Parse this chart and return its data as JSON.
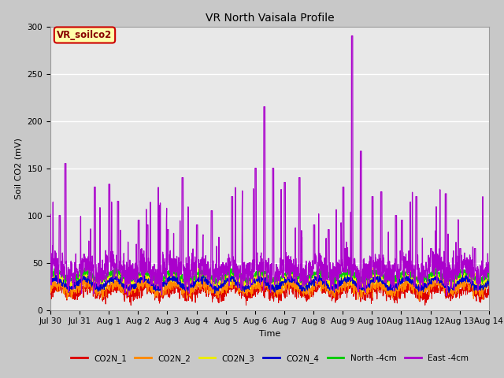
{
  "title": "VR North Vaisala Profile",
  "xlabel": "Time",
  "ylabel": "Soil CO2 (mV)",
  "ylim": [
    0,
    300
  ],
  "yticks": [
    0,
    50,
    100,
    150,
    200,
    250,
    300
  ],
  "date_labels": [
    "Jul 30",
    "Jul 31",
    "Aug 1",
    "Aug 2",
    "Aug 3",
    "Aug 4",
    "Aug 5",
    "Aug 6",
    "Aug 7",
    "Aug 8",
    "Aug 9",
    "Aug 10",
    "Aug 11",
    "Aug 12",
    "Aug 13",
    "Aug 14"
  ],
  "legend_labels": [
    "CO2N_1",
    "CO2N_2",
    "CO2N_3",
    "CO2N_4",
    "North -4cm",
    "East -4cm"
  ],
  "legend_colors": [
    "#dd0000",
    "#ff8800",
    "#eeee00",
    "#0000cc",
    "#00cc00",
    "#aa00cc"
  ],
  "background_color": "#c8c8c8",
  "plot_bg_color": "#e8e8e8",
  "annotation_box": {
    "text": "VR_soilco2",
    "facecolor": "#ffffaa",
    "edgecolor": "#cc0000"
  },
  "n_points": 2000,
  "seed": 7
}
